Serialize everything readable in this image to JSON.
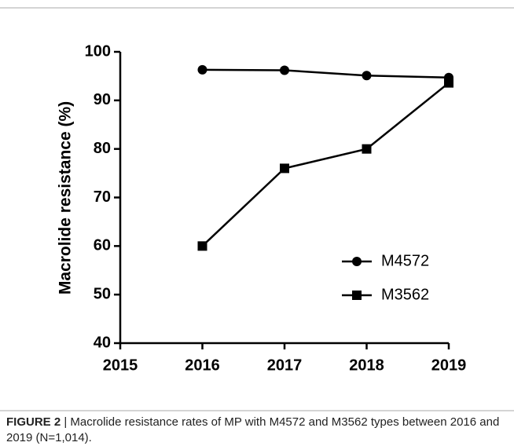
{
  "chart_data": {
    "type": "line",
    "y_label": "Macrolide resistance (%)",
    "x": [
      2016,
      2017,
      2018,
      2019
    ],
    "series": [
      {
        "name": "M4572",
        "color": "#000000",
        "marker": "circle",
        "values": [
          96.3,
          96.2,
          95.1,
          94.7
        ]
      },
      {
        "name": "M3562",
        "color": "#000000",
        "marker": "square",
        "values": [
          60,
          76,
          80,
          93.6
        ]
      }
    ],
    "xlim": [
      2015,
      2019
    ],
    "xticks": [
      2015,
      2016,
      2017,
      2018,
      2019
    ],
    "ylim": [
      40,
      100
    ],
    "yticks": [
      40,
      50,
      60,
      70,
      80,
      90,
      100
    ],
    "grid": false,
    "legend": "lower right"
  },
  "caption": {
    "label": "FIGURE 2",
    "text": "| Macrolide resistance rates of MP with M4572 and M3562 types between 2016 and 2019 (N=1,014)."
  }
}
